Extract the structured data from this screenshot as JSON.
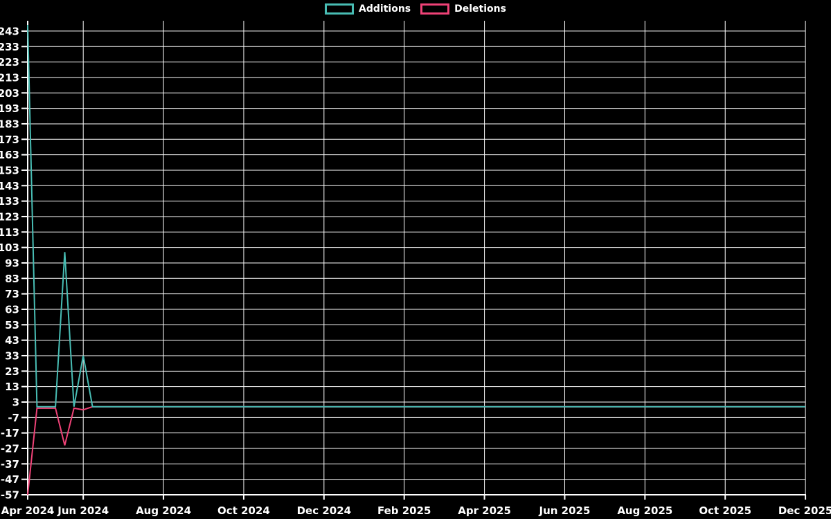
{
  "background": "#000000",
  "text_color": "#ffffff",
  "grid_color": "#ffffff",
  "legend": {
    "position": "top-center",
    "items": [
      {
        "label": "Additions",
        "color": "#48bdb4"
      },
      {
        "label": "Deletions",
        "color": "#ef4277"
      }
    ]
  },
  "chart_data": {
    "type": "line",
    "title": "",
    "xlabel": "",
    "ylabel": "",
    "grid": true,
    "legend_position": "top-center",
    "x_unit": "week",
    "weeks_total": 84,
    "x_tick_labels": [
      "Apr 2024",
      "Jun 2024",
      "Aug 2024",
      "Oct 2024",
      "Dec 2024",
      "Feb 2025",
      "Apr 2025",
      "Jun 2025",
      "Aug 2025",
      "Oct 2025",
      "Dec 2025"
    ],
    "y_ticks": [
      243,
      233,
      223,
      213,
      203,
      193,
      183,
      173,
      163,
      153,
      143,
      133,
      123,
      113,
      103,
      93,
      83,
      73,
      63,
      53,
      43,
      33,
      23,
      13,
      3,
      -7,
      -17,
      -27,
      -37,
      -47,
      -57
    ],
    "ylim": [
      -57,
      247
    ],
    "series": [
      {
        "name": "Additions",
        "color": "#48bdb4",
        "points": [
          [
            0,
            247
          ],
          [
            1,
            0
          ],
          [
            3,
            0
          ],
          [
            4,
            100
          ],
          [
            5,
            0
          ],
          [
            6,
            33
          ],
          [
            7,
            0
          ],
          [
            84,
            0
          ]
        ]
      },
      {
        "name": "Deletions",
        "color": "#ef4277",
        "points": [
          [
            0,
            -57
          ],
          [
            1,
            -1
          ],
          [
            3,
            -1
          ],
          [
            4,
            -25
          ],
          [
            5,
            -1
          ],
          [
            6,
            -2
          ],
          [
            7,
            0
          ],
          [
            84,
            0
          ]
        ]
      }
    ]
  }
}
